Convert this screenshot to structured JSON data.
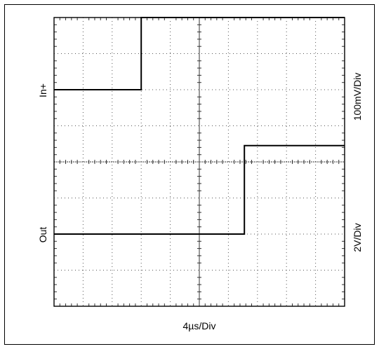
{
  "chart_data": {
    "type": "line",
    "title": "",
    "grid": true,
    "divisions": {
      "x": 10,
      "y": 8
    },
    "x_scale_label": "4µs/Div",
    "channels": [
      {
        "name": "In+",
        "scale_label": "100mV/Div",
        "x_div": [
          0,
          3.0,
          3.0,
          10
        ],
        "y_div": [
          6.0,
          6.0,
          8.0,
          8.0
        ]
      },
      {
        "name": "Out",
        "scale_label": "2V/Div",
        "x_div": [
          0,
          6.55,
          6.55,
          10
        ],
        "y_div": [
          2.0,
          2.0,
          4.45,
          4.45
        ]
      }
    ]
  }
}
